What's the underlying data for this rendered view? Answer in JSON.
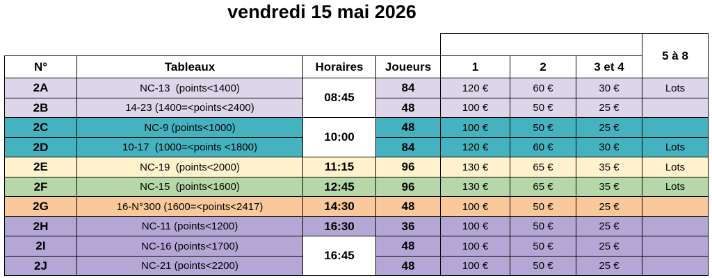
{
  "title": "vendredi 15 mai 2026",
  "table": {
    "headers": {
      "number": "N°",
      "tableaux": "Tableaux",
      "horaires": "Horaires",
      "joueurs": "Joueurs",
      "p1": "1",
      "p2": "2",
      "p34": "3 et 4",
      "p58": "5 à 8"
    },
    "rows": [
      {
        "id": "2A",
        "tableau": "NC-13  (points<1400)",
        "horaire": "08:45",
        "joueurs": 84,
        "p1": "120 €",
        "p2": "60 €",
        "p34": "30 €",
        "p58": "Lots",
        "color": "#ddd6ea"
      },
      {
        "id": "2B",
        "tableau": "14-23 (1400=<points<2400)",
        "horaire": null,
        "joueurs": 48,
        "p1": "100 €",
        "p2": "50 €",
        "p34": "25 €",
        "p58": null,
        "color": "#ddd6ea"
      },
      {
        "id": "2C",
        "tableau": "NC-9 (points<1000)",
        "horaire": "10:00",
        "joueurs": 48,
        "p1": "100 €",
        "p2": "50 €",
        "p34": "25 €",
        "p58": null,
        "color": "#45b3bf"
      },
      {
        "id": "2D",
        "tableau": "10-17  (1000=<points <1800)",
        "horaire": null,
        "joueurs": 84,
        "p1": "120 €",
        "p2": "60 €",
        "p34": "30 €",
        "p58": "Lots",
        "color": "#45b3bf"
      },
      {
        "id": "2E",
        "tableau": "NC-19  (points<2000)",
        "horaire": "11:15",
        "joueurs": 96,
        "p1": "130 €",
        "p2": "65 €",
        "p34": "35 €",
        "p58": "Lots",
        "color": "#fff2cc"
      },
      {
        "id": "2F",
        "tableau": "NC-15  (points<1600)",
        "horaire": "12:45",
        "joueurs": 96,
        "p1": "130 €",
        "p2": "65 €",
        "p34": "35 €",
        "p58": "Lots",
        "color": "#b6d7a8"
      },
      {
        "id": "2G",
        "tableau": "16-N°300 (1600=<points<2417)",
        "horaire": "14:30",
        "joueurs": 48,
        "p1": "100 €",
        "p2": "50 €",
        "p34": "25 €",
        "p58": null,
        "color": "#f9c99b"
      },
      {
        "id": "2H",
        "tableau": "NC-11 (points<1200)",
        "horaire": "16:30",
        "joueurs": 36,
        "p1": "100 €",
        "p2": "50 €",
        "p34": "25 €",
        "p58": null,
        "color": "#b4a7d6"
      },
      {
        "id": "2I",
        "tableau": "NC-16 (points<1700)",
        "horaire": "16:45",
        "joueurs": 48,
        "p1": "100 €",
        "p2": "50 €",
        "p34": "25 €",
        "p58": null,
        "color": "#b4a7d6"
      },
      {
        "id": "2J",
        "tableau": "NC-21 (points<2200)",
        "horaire": null,
        "joueurs": 48,
        "p1": "100 €",
        "p2": "50 €",
        "p34": "25 €",
        "p58": null,
        "color": "#b4a7d6"
      }
    ]
  }
}
